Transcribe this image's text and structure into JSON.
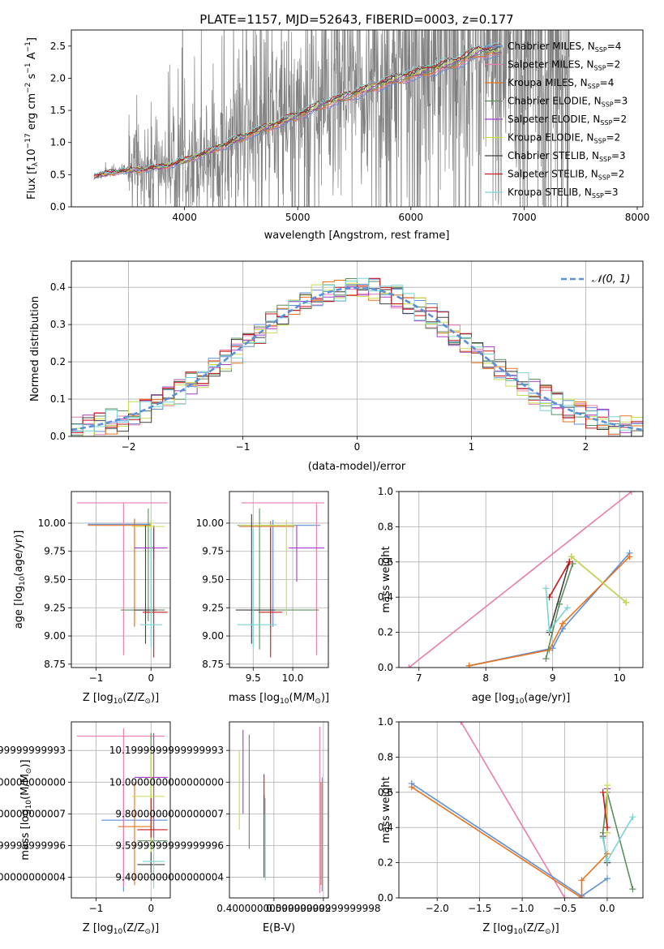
{
  "figure_title": "PLATE=1157, MJD=52643, FIBERID=0003, z=0.177",
  "model_colors": {
    "Chabrier MILES": "#5b8fd9",
    "Salpeter MILES": "#e87dad",
    "Kroupa MILES": "#e6731e",
    "Chabrier ELODIE": "#5c8f5c",
    "Salpeter ELODIE": "#a23cc8",
    "Kroupa ELODIE": "#c5de4a",
    "Chabrier STELIB": "#404040",
    "Salpeter STELIB": "#c81a1a",
    "Kroupa STELIB": "#7ad4d4"
  },
  "chart_data": [
    {
      "id": "spectrum",
      "type": "line",
      "xlabel": "wavelength [Angstrom, rest frame]",
      "ylabel_parts": {
        "a": "Flux [f",
        "sub": "λ",
        "b": "10",
        "sup1": "−17",
        "c": " erg cm",
        "sup2": "−2",
        "d": " s",
        "sup3": "−1",
        "e": " A",
        "sup4": "−1",
        "f": "]"
      },
      "xlim": [
        3000,
        8050
      ],
      "ylim": [
        0,
        2.75
      ],
      "xticks": [
        4000,
        5000,
        6000,
        7000,
        8000
      ],
      "yticks": [
        0.0,
        0.5,
        1.0,
        1.5,
        2.0,
        2.5
      ],
      "grid": false,
      "legend_position": "upper-right",
      "data_color": "#808080",
      "data_range": [
        3200,
        7400
      ],
      "model_continuum": {
        "x": [
          3200,
          3400,
          3600,
          3800,
          4000,
          4200,
          4400,
          4600,
          4800,
          5000,
          5200,
          5400,
          5600,
          5800,
          6000,
          6200,
          6400,
          6600,
          6800
        ],
        "y": [
          0.48,
          0.55,
          0.58,
          0.62,
          0.72,
          0.85,
          1.0,
          1.15,
          1.28,
          1.42,
          1.58,
          1.7,
          1.82,
          1.95,
          2.05,
          2.15,
          2.25,
          2.42,
          2.42
        ]
      },
      "legend": [
        {
          "model": "Chabrier MILES",
          "n_ssp": "4"
        },
        {
          "model": "Salpeter MILES",
          "n_ssp": "2"
        },
        {
          "model": "Kroupa MILES",
          "n_ssp": "4"
        },
        {
          "model": "Chabrier ELODIE",
          "n_ssp": "3"
        },
        {
          "model": "Salpeter ELODIE",
          "n_ssp": "2"
        },
        {
          "model": "Kroupa ELODIE",
          "n_ssp": "2"
        },
        {
          "model": "Chabrier STELIB",
          "n_ssp": "3"
        },
        {
          "model": "Salpeter STELIB",
          "n_ssp": "2"
        },
        {
          "model": "Kroupa STELIB",
          "n_ssp": "3"
        }
      ]
    },
    {
      "id": "residuals",
      "type": "histogram",
      "xlabel": "(data-model)/error",
      "ylabel": "Normed distribution",
      "xlim": [
        -2.5,
        2.5
      ],
      "ylim": [
        0,
        0.47
      ],
      "xticks": [
        -2,
        -1,
        0,
        1,
        2
      ],
      "yticks": [
        0.0,
        0.1,
        0.2,
        0.3,
        0.4
      ],
      "grid": true,
      "legend_position": "upper-right",
      "legend_label": "𝒩(0, 1)",
      "bin_width": 0.1,
      "gaussian_color": "#5b8fd9"
    },
    {
      "id": "age-Z",
      "type": "errorbar",
      "xlabel": "Z [log10(Z/Z☉)]",
      "xlabel_parts": {
        "a": "Z [log",
        "sub": "10",
        "b": "(Z/Z",
        "sub2": "⊙",
        "c": ")]"
      },
      "ylabel_parts": {
        "a": "age  [log",
        "sub": "10",
        "b": "(age/yr)]"
      },
      "xlim": [
        -1.45,
        0.35
      ],
      "ylim": [
        8.72,
        10.28
      ],
      "xticks": [
        -1,
        0
      ],
      "yticks": [
        8.75,
        9.0,
        9.25,
        9.5,
        9.75,
        10.0
      ],
      "grid": true,
      "points": [
        {
          "model": "Chabrier MILES",
          "x": -0.3,
          "xerr": [
            0.85,
            0.3
          ],
          "y": 9.99,
          "yerr": [
            0.9,
            0.05
          ]
        },
        {
          "model": "Salpeter MILES",
          "x": -0.5,
          "xerr": [
            0.85,
            0.8
          ],
          "y": 10.18,
          "yerr": [
            1.35,
            0.0
          ]
        },
        {
          "model": "Kroupa MILES",
          "x": -0.3,
          "xerr": [
            0.85,
            0.3
          ],
          "y": 9.98,
          "yerr": [
            0.9,
            0.05
          ]
        },
        {
          "model": "Chabrier ELODIE",
          "x": -0.05,
          "xerr": [
            0.5,
            0.3
          ],
          "y": 9.23,
          "yerr": [
            0.1,
            0.9
          ]
        },
        {
          "model": "Salpeter ELODIE",
          "x": 0.05,
          "xerr": [
            0.35,
            0.25
          ],
          "y": 9.78,
          "yerr": [
            0.1,
            0.2
          ]
        },
        {
          "model": "Kroupa ELODIE",
          "x": 0.0,
          "xerr": [
            0.35,
            0.25
          ],
          "y": 9.97,
          "yerr": [
            0.8,
            0.05
          ]
        },
        {
          "model": "Chabrier STELIB",
          "x": -0.1,
          "xerr": [
            0.2,
            0.2
          ],
          "y": 9.23,
          "yerr": [
            0.3,
            0.75
          ]
        },
        {
          "model": "Salpeter STELIB",
          "x": 0.05,
          "xerr": [
            0.2,
            0.25
          ],
          "y": 9.21,
          "yerr": [
            0.4,
            0.75
          ]
        },
        {
          "model": "Kroupa STELIB",
          "x": 0.0,
          "xerr": [
            0.2,
            0.2
          ],
          "y": 9.1,
          "yerr": [
            0.2,
            0.85
          ]
        }
      ]
    },
    {
      "id": "age-mass",
      "type": "errorbar",
      "xlabel_parts": {
        "a": "mass [log",
        "sub": "10",
        "b": "(M/M",
        "sub2": "⊙",
        "c": ")]"
      },
      "xlim": [
        9.2,
        10.45
      ],
      "ylim": [
        8.72,
        10.28
      ],
      "xticks": [
        9.5,
        10.0
      ],
      "yticks": [
        8.75,
        9.0,
        9.25,
        9.5,
        9.75,
        10.0
      ],
      "grid": true,
      "points": [
        {
          "model": "Chabrier MILES",
          "x": 9.75,
          "xerr": [
            0.45,
            0.6
          ],
          "y": 9.98,
          "yerr": [
            0.9,
            0.05
          ]
        },
        {
          "model": "Salpeter MILES",
          "x": 10.3,
          "xerr": [
            0.95,
            0.1
          ],
          "y": 10.18,
          "yerr": [
            1.35,
            0.0
          ]
        },
        {
          "model": "Kroupa MILES",
          "x": 9.72,
          "xerr": [
            0.4,
            0.3
          ],
          "y": 9.97,
          "yerr": [
            0.9,
            0.05
          ]
        },
        {
          "model": "Chabrier ELODIE",
          "x": 9.58,
          "xerr": [
            0.15,
            0.75
          ],
          "y": 9.23,
          "yerr": [
            0.35,
            0.9
          ]
        },
        {
          "model": "Salpeter ELODIE",
          "x": 10.05,
          "xerr": [
            0.1,
            0.35
          ],
          "y": 9.78,
          "yerr": [
            0.3,
            0.2
          ]
        },
        {
          "model": "Kroupa ELODIE",
          "x": 9.92,
          "xerr": [
            0.6,
            0.1
          ],
          "y": 9.98,
          "yerr": [
            0.8,
            0.05
          ]
        },
        {
          "model": "Chabrier STELIB",
          "x": 9.48,
          "xerr": [
            0.2,
            0.3
          ],
          "y": 9.23,
          "yerr": [
            0.3,
            0.85
          ]
        },
        {
          "model": "Salpeter STELIB",
          "x": 9.72,
          "xerr": [
            0.15,
            0.15
          ],
          "y": 9.21,
          "yerr": [
            0.4,
            0.75
          ]
        },
        {
          "model": "Kroupa STELIB",
          "x": 9.5,
          "xerr": [
            0.2,
            0.3
          ],
          "y": 9.1,
          "yerr": [
            0.2,
            0.85
          ]
        }
      ]
    },
    {
      "id": "weight-age",
      "type": "line",
      "xlabel_parts": {
        "a": "age  [log",
        "sub": "10",
        "b": "(age/yr)]"
      },
      "ylabel": "mass weight",
      "xlim": [
        6.7,
        10.35
      ],
      "ylim": [
        0,
        1.0
      ],
      "xticks": [
        7,
        8,
        9,
        10
      ],
      "yticks": [
        0.0,
        0.2,
        0.4,
        0.6,
        0.8,
        1.0
      ],
      "grid": true,
      "series": [
        {
          "model": "Salpeter MILES",
          "x": [
            6.85,
            10.18
          ],
          "y": [
            0.0,
            1.0
          ]
        },
        {
          "model": "Chabrier MILES",
          "x": [
            7.75,
            9.0,
            9.15,
            10.15
          ],
          "y": [
            0.01,
            0.11,
            0.22,
            0.65
          ]
        },
        {
          "model": "Kroupa MILES",
          "x": [
            7.75,
            8.95,
            9.15,
            10.15
          ],
          "y": [
            0.01,
            0.1,
            0.25,
            0.63
          ]
        },
        {
          "model": "Chabrier ELODIE",
          "x": [
            8.9,
            9.1,
            9.3
          ],
          "y": [
            0.05,
            0.36,
            0.59
          ]
        },
        {
          "model": "Salpeter ELODIE",
          "x": [
            9.28,
            10.1
          ],
          "y": [
            0.63,
            0.37
          ]
        },
        {
          "model": "Kroupa ELODIE",
          "x": [
            9.28,
            10.1
          ],
          "y": [
            0.63,
            0.37
          ]
        },
        {
          "model": "Chabrier STELIB",
          "x": [
            8.95,
            9.25
          ],
          "y": [
            0.2,
            0.6
          ]
        },
        {
          "model": "Salpeter STELIB",
          "x": [
            8.95,
            9.25
          ],
          "y": [
            0.4,
            0.6
          ]
        },
        {
          "model": "Kroupa STELIB",
          "x": [
            8.9,
            8.95,
            9.22
          ],
          "y": [
            0.45,
            0.21,
            0.34
          ]
        }
      ]
    },
    {
      "id": "mass-Z",
      "type": "errorbar",
      "xlabel_parts": {
        "a": "Z [log",
        "sub": "10",
        "b": "(Z/Z",
        "sub2": "⊙",
        "c": ")]"
      },
      "ylabel_parts": {
        "a": "mass [log",
        "sub": "10",
        "b": "(M/M",
        "sub2": "⊙",
        "c": ")]"
      },
      "xlim": [
        -1.45,
        0.35
      ],
      "ylim": [
        9.27,
        10.38
      ],
      "xticks": [
        -1,
        0
      ],
      "yticks": [
        9.4,
        9.6,
        9.8,
        10.0,
        10.2
      ],
      "grid": true,
      "points": [
        {
          "model": "Chabrier MILES",
          "x": -0.5,
          "xerr": [
            0.4,
            0.8
          ],
          "y": 9.76,
          "yerr": [
            0.45,
            0.27
          ]
        },
        {
          "model": "Salpeter MILES",
          "x": -0.5,
          "xerr": [
            0.85,
            0.75
          ],
          "y": 10.29,
          "yerr": [
            0.95,
            0.05
          ]
        },
        {
          "model": "Kroupa MILES",
          "x": -0.3,
          "xerr": [
            0.3,
            0.3
          ],
          "y": 9.72,
          "yerr": [
            0.37,
            0.28
          ]
        },
        {
          "model": "Chabrier ELODIE",
          "x": 0.0,
          "xerr": [
            0.25,
            0.3
          ],
          "y": 9.63,
          "yerr": [
            0.05,
            0.68
          ]
        },
        {
          "model": "Salpeter ELODIE",
          "x": 0.05,
          "xerr": [
            0.35,
            0.25
          ],
          "y": 10.03,
          "yerr": [
            0.4,
            0.28
          ]
        },
        {
          "model": "Kroupa ELODIE",
          "x": 0.0,
          "xerr": [
            0.35,
            0.25
          ],
          "y": 9.91,
          "yerr": [
            0.4,
            0.3
          ]
        },
        {
          "model": "Chabrier STELIB",
          "x": 0.0,
          "xerr": [
            0.25,
            0.25
          ],
          "y": 9.48,
          "yerr": [
            0.05,
            0.08
          ]
        },
        {
          "model": "Salpeter STELIB",
          "x": 0.0,
          "xerr": [
            0.25,
            0.3
          ],
          "y": 9.7,
          "yerr": [
            0.05,
            0.2
          ]
        },
        {
          "model": "Kroupa STELIB",
          "x": 0.05,
          "xerr": [
            0.2,
            0.2
          ],
          "y": 9.5,
          "yerr": [
            0.17,
            0.15
          ]
        }
      ]
    },
    {
      "id": "mass-ebv",
      "type": "errorbar",
      "xlabel": "E(B-V)",
      "xlim": [
        0.22,
        0.62
      ],
      "ylim": [
        9.27,
        10.38
      ],
      "xticks": [
        0.4,
        0.6
      ],
      "yticks": [
        9.4,
        9.6,
        9.8,
        10.0,
        10.2
      ],
      "grid": true,
      "points": [
        {
          "model": "Chabrier MILES",
          "x": 0.595,
          "xerr": [
            0.0,
            0.0
          ],
          "y": 9.76,
          "yerr": [
            0.45,
            0.27
          ]
        },
        {
          "model": "Salpeter MILES",
          "x": 0.585,
          "xerr": [
            0.0,
            0.0
          ],
          "y": 10.0,
          "yerr": [
            0.7,
            0.35
          ]
        },
        {
          "model": "Kroupa MILES",
          "x": 0.59,
          "xerr": [
            0.0,
            0.0
          ],
          "y": 9.72,
          "yerr": [
            0.37,
            0.28
          ]
        },
        {
          "model": "Chabrier ELODIE",
          "x": 0.3,
          "xerr": [
            0.0,
            0.0
          ],
          "y": 9.9,
          "yerr": [
            0.32,
            0.4
          ]
        },
        {
          "model": "Salpeter ELODIE",
          "x": 0.275,
          "xerr": [
            0.0,
            0.0
          ],
          "y": 10.0,
          "yerr": [
            0.2,
            0.33
          ]
        },
        {
          "model": "Kroupa ELODIE",
          "x": 0.26,
          "xerr": [
            0.0,
            0.0
          ],
          "y": 9.95,
          "yerr": [
            0.25,
            0.25
          ]
        },
        {
          "model": "Chabrier STELIB",
          "x": 0.36,
          "xerr": [
            0.0,
            0.0
          ],
          "y": 9.9,
          "yerr": [
            0.5,
            0.02
          ]
        },
        {
          "model": "Salpeter STELIB",
          "x": 0.36,
          "xerr": [
            0.0,
            0.0
          ],
          "y": 9.9,
          "yerr": [
            0.1,
            0.15
          ]
        },
        {
          "model": "Kroupa STELIB",
          "x": 0.365,
          "xerr": [
            0.0,
            0.0
          ],
          "y": 9.65,
          "yerr": [
            0.27,
            0.25
          ]
        }
      ]
    },
    {
      "id": "weight-Z",
      "type": "line",
      "xlabel_parts": {
        "a": "Z [log",
        "sub": "10",
        "b": "(Z/Z",
        "sub2": "⊙",
        "c": ")]"
      },
      "ylabel": "mass weight",
      "xlim": [
        -2.45,
        0.42
      ],
      "ylim": [
        0,
        1.0
      ],
      "xticks": [
        -2.0,
        -1.5,
        -1.0,
        -0.5,
        0.0
      ],
      "yticks": [
        0.0,
        0.2,
        0.4,
        0.6,
        0.8,
        1.0
      ],
      "grid": true,
      "series": [
        {
          "model": "Salpeter MILES",
          "x": [
            -1.72,
            -0.5
          ],
          "y": [
            1.0,
            0.0
          ]
        },
        {
          "model": "Chabrier MILES",
          "x": [
            -2.3,
            -0.3,
            0.0
          ],
          "y": [
            0.65,
            0.01,
            0.11
          ]
        },
        {
          "model": "Kroupa MILES",
          "x": [
            -2.3,
            -0.3,
            -0.3,
            0.0
          ],
          "y": [
            0.63,
            0.0,
            0.1,
            0.25
          ]
        },
        {
          "model": "Chabrier ELODIE",
          "x": [
            -0.05,
            0.0,
            0.3
          ],
          "y": [
            0.37,
            0.6,
            0.05
          ]
        },
        {
          "model": "Salpeter ELODIE",
          "x": [
            0.0,
            0.0
          ],
          "y": [
            0.37,
            0.62
          ]
        },
        {
          "model": "Kroupa ELODIE",
          "x": [
            0.0,
            0.0
          ],
          "y": [
            0.37,
            0.64
          ]
        },
        {
          "model": "Chabrier STELIB",
          "x": [
            -0.05,
            0.0
          ],
          "y": [
            0.35,
            0.2
          ]
        },
        {
          "model": "Salpeter STELIB",
          "x": [
            -0.05,
            0.0
          ],
          "y": [
            0.6,
            0.4
          ]
        },
        {
          "model": "Kroupa STELIB",
          "x": [
            -0.05,
            0.0,
            0.3
          ],
          "y": [
            0.34,
            0.21,
            0.46
          ]
        }
      ]
    }
  ]
}
